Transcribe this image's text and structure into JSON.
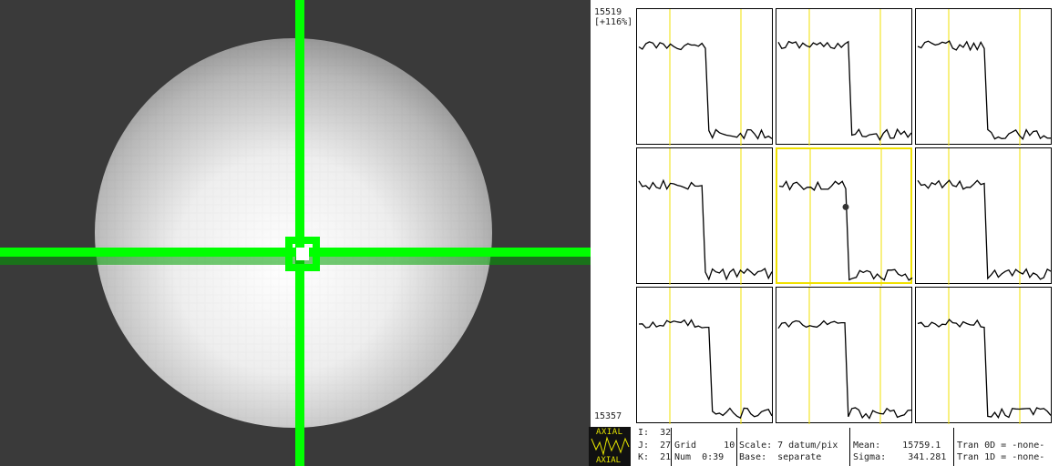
{
  "viewer": {
    "image_name": "axial-image",
    "crosshair_color": "#00ff00"
  },
  "graph": {
    "ymax": "15519",
    "yrange": "[+116%]",
    "ymin": "15357",
    "selected_color": "#f0e000",
    "marker_color": "#f0e000",
    "grid_rows": 3,
    "grid_cols": 3
  },
  "logo": {
    "top": "AXIAL",
    "bottom": "AXIAL"
  },
  "status": {
    "i": "I:  32",
    "j": "J:  27",
    "k": "K:  21",
    "grid": "Grid     10",
    "num": "Num  0:39",
    "scale": "Scale: 7 datum/pix",
    "base": "Base:  separate",
    "mean": "Mean:    15759.1",
    "sigma": "Sigma:    341.281",
    "tran0d": "Tran 0D = -none-",
    "tran1d": "Tran 1D = -none-"
  }
}
